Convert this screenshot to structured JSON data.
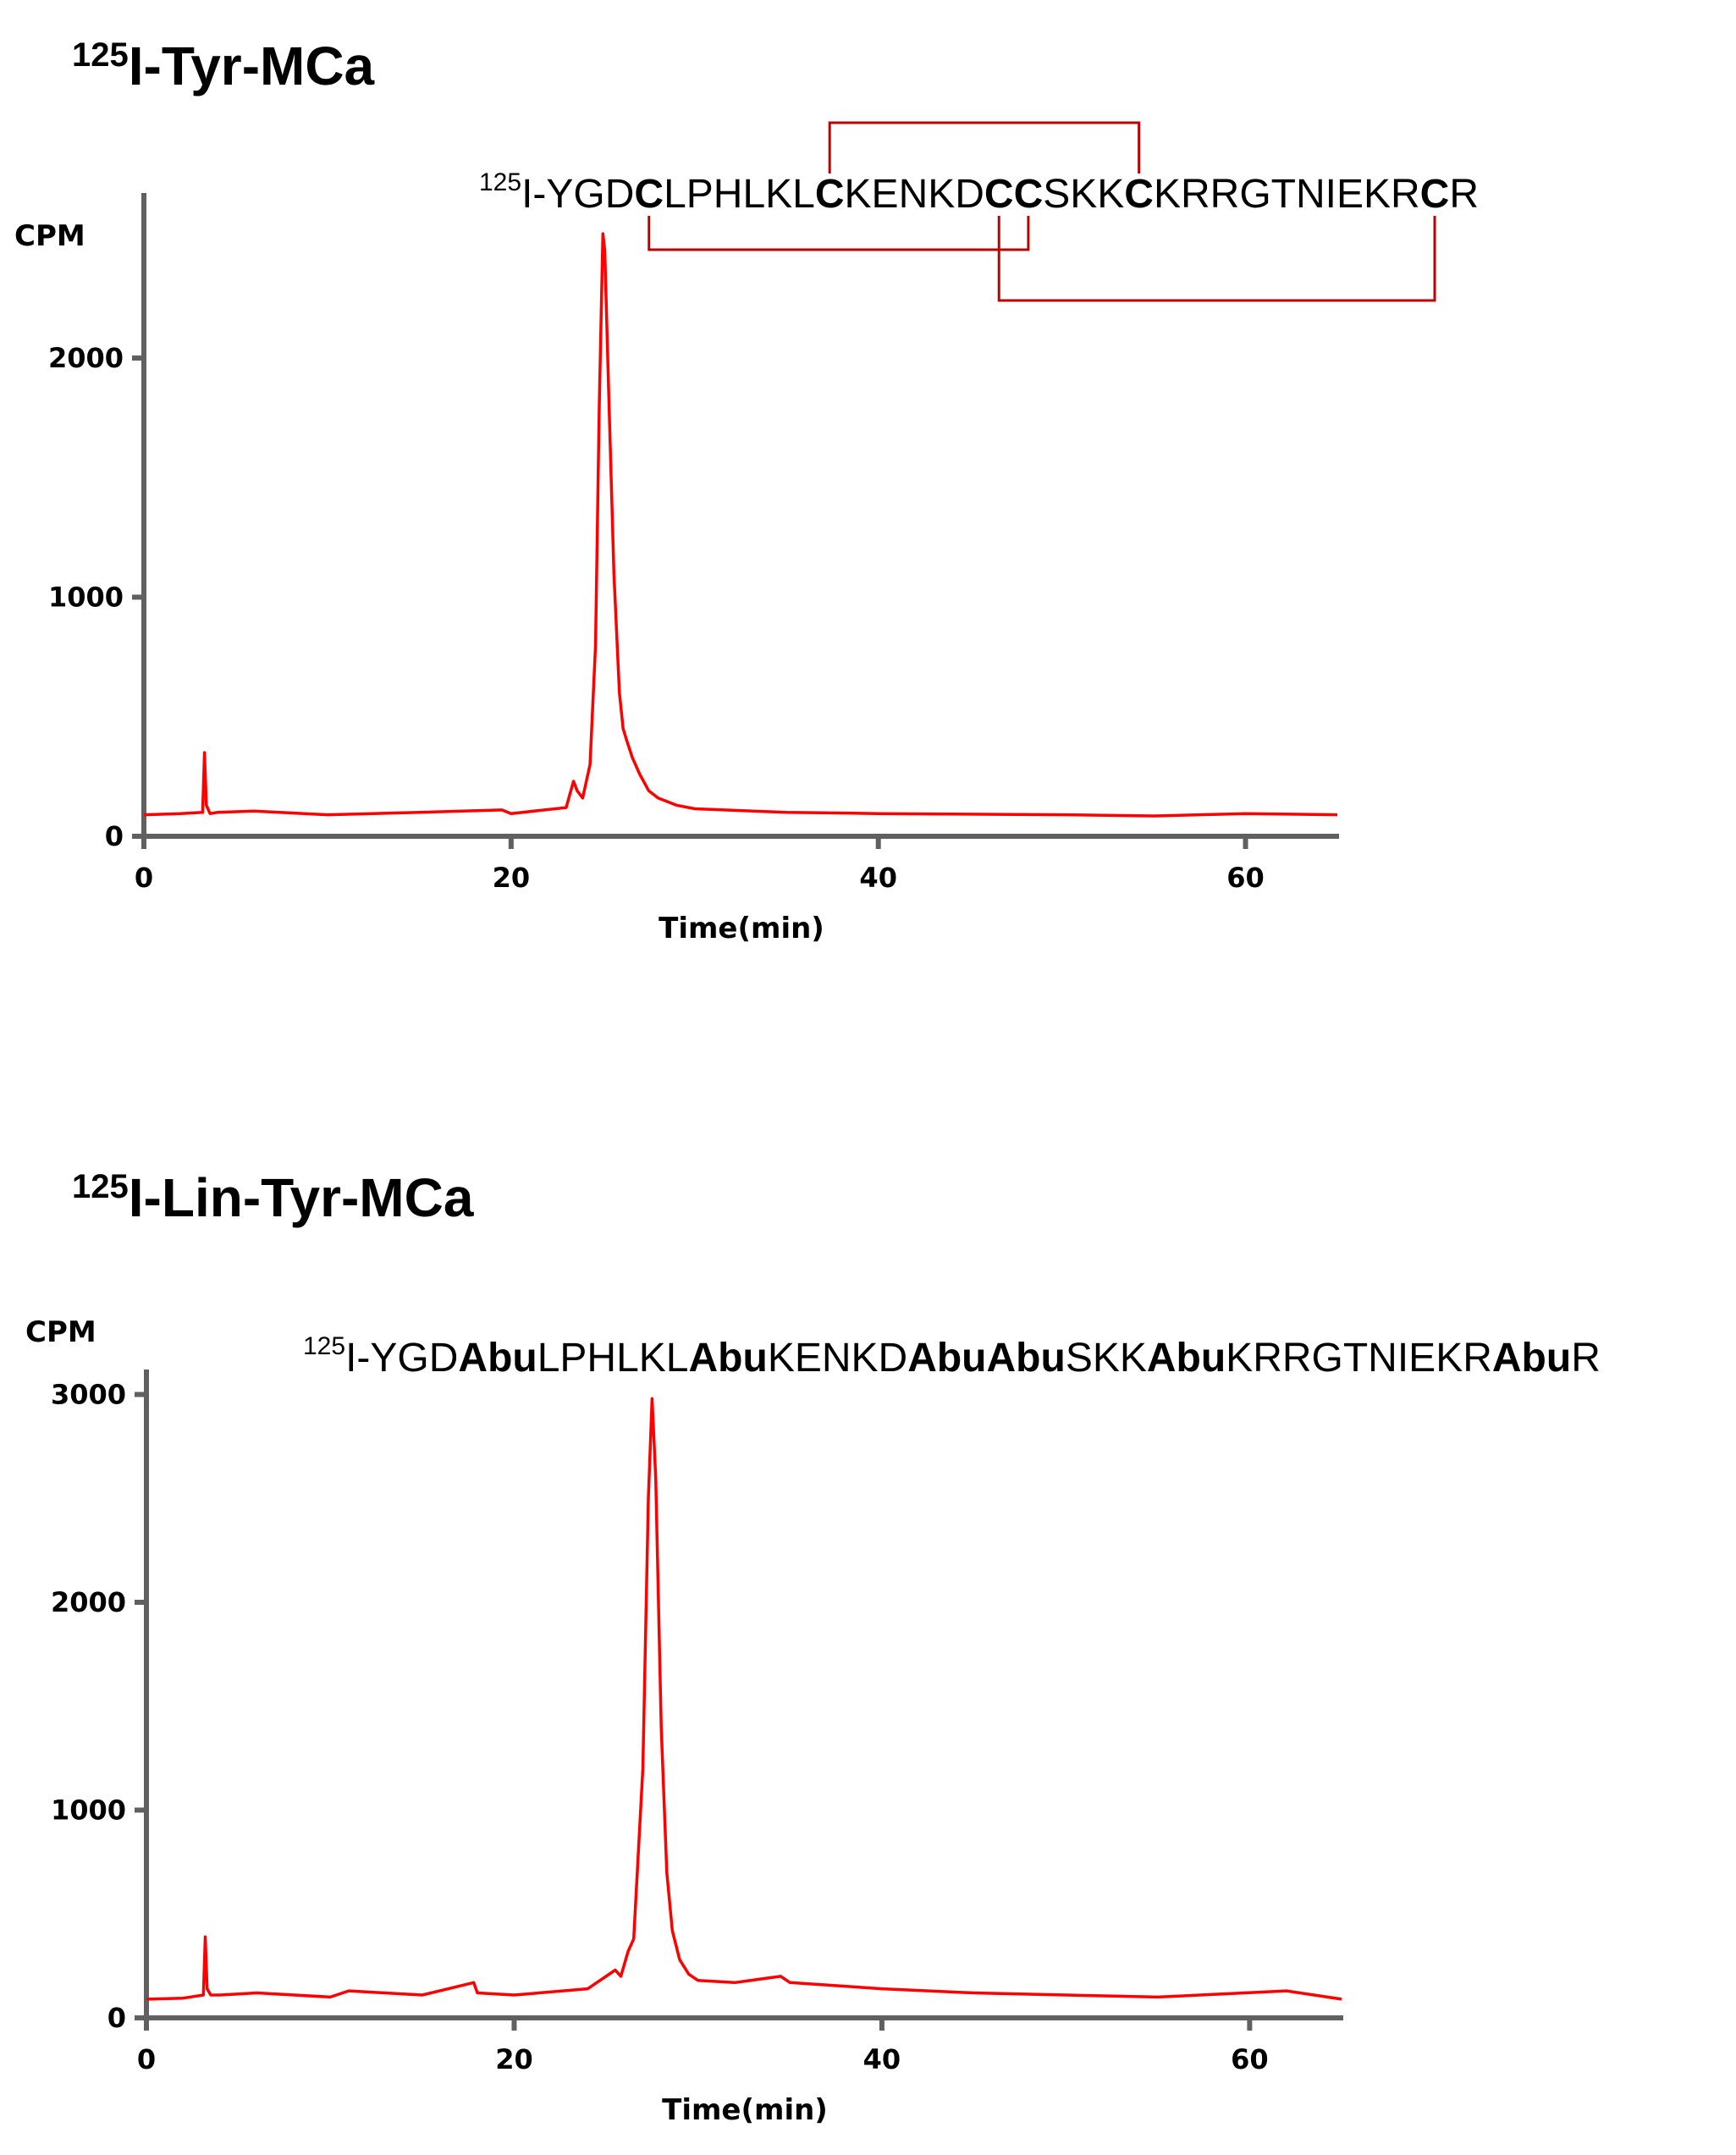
{
  "chart_data": [
    {
      "type": "line",
      "title_sup": "125",
      "title": "I-Tyr-MCa",
      "sequence": {
        "sup": "125",
        "segments": [
          {
            "t": "I-YGD",
            "b": false
          },
          {
            "t": "C",
            "b": true
          },
          {
            "t": "LPHLKL",
            "b": false
          },
          {
            "t": "C",
            "b": true
          },
          {
            "t": "KENKD",
            "b": false
          },
          {
            "t": "C",
            "b": true
          },
          {
            "t": "C",
            "b": true
          },
          {
            "t": "SKK",
            "b": false
          },
          {
            "t": "C",
            "b": true
          },
          {
            "t": "KRRGTNIEKR",
            "b": false
          },
          {
            "t": "C",
            "b": true
          },
          {
            "t": "R",
            "b": false
          }
        ],
        "disulfide_bonds": [
          [
            1,
            4
          ],
          [
            0,
            3
          ],
          [
            2,
            5
          ]
        ]
      },
      "ylabel": "CPM",
      "xlabel": "Time(min)",
      "xlim": [
        0,
        65
      ],
      "ylim": [
        0,
        2700
      ],
      "xticks": [
        "0",
        "20",
        "40",
        "60"
      ],
      "yticks": [
        "0",
        "1000",
        "2000"
      ],
      "series": [
        {
          "color": "#ff0000",
          "x": [
            0,
            2,
            3.2,
            3.3,
            3.4,
            3.6,
            4,
            6,
            10,
            15,
            19.5,
            20,
            23,
            23.4,
            23.6,
            23.9,
            24.3,
            24.6,
            24.8,
            25.0,
            25.1,
            25.3,
            25.6,
            25.9,
            26.1,
            26.3,
            26.6,
            27,
            27.5,
            28,
            29,
            30,
            35,
            40,
            50,
            55,
            60,
            65
          ],
          "y": [
            90,
            95,
            100,
            350,
            130,
            95,
            100,
            105,
            90,
            100,
            110,
            95,
            120,
            230,
            190,
            160,
            300,
            800,
            1800,
            2520,
            2450,
            1900,
            1100,
            600,
            450,
            400,
            330,
            260,
            190,
            160,
            130,
            115,
            100,
            95,
            90,
            85,
            95,
            90
          ]
        }
      ]
    },
    {
      "type": "line",
      "title_sup": "125",
      "title": "I-Lin-Tyr-MCa",
      "sequence": {
        "sup": "125",
        "segments": [
          {
            "t": "I-YGD",
            "b": false
          },
          {
            "t": "Abu",
            "b": true
          },
          {
            "t": "LPHLKL",
            "b": false
          },
          {
            "t": "Abu",
            "b": true
          },
          {
            "t": "KENKD",
            "b": false
          },
          {
            "t": "Abu",
            "b": true
          },
          {
            "t": "Abu",
            "b": true
          },
          {
            "t": "SKK",
            "b": false
          },
          {
            "t": "Abu",
            "b": true
          },
          {
            "t": "KRRGTNIEKR",
            "b": false
          },
          {
            "t": "Abu",
            "b": true
          },
          {
            "t": "R",
            "b": false
          }
        ],
        "disulfide_bonds": []
      },
      "ylabel": "CPM",
      "xlabel": "Time(min)",
      "xlim": [
        0,
        65
      ],
      "ylim": [
        0,
        3000
      ],
      "xticks": [
        "0",
        "20",
        "40",
        "60"
      ],
      "yticks": [
        "0",
        "1000",
        "2000",
        "3000"
      ],
      "series": [
        {
          "color": "#ff0000",
          "x": [
            0,
            2,
            3.1,
            3.2,
            3.3,
            3.5,
            4,
            6,
            10,
            11,
            15,
            17.8,
            18,
            20,
            24,
            25.5,
            25.8,
            26.2,
            26.5,
            27,
            27.3,
            27.5,
            27.7,
            28,
            28.3,
            28.6,
            29,
            29.5,
            30,
            32,
            34.5,
            35,
            40,
            45,
            50,
            55,
            62,
            65
          ],
          "y": [
            90,
            95,
            110,
            390,
            140,
            110,
            110,
            120,
            100,
            130,
            110,
            170,
            120,
            110,
            140,
            230,
            200,
            320,
            380,
            1200,
            2500,
            2980,
            2600,
            1400,
            700,
            420,
            280,
            210,
            180,
            170,
            200,
            170,
            140,
            120,
            110,
            100,
            130,
            90
          ]
        }
      ]
    }
  ]
}
